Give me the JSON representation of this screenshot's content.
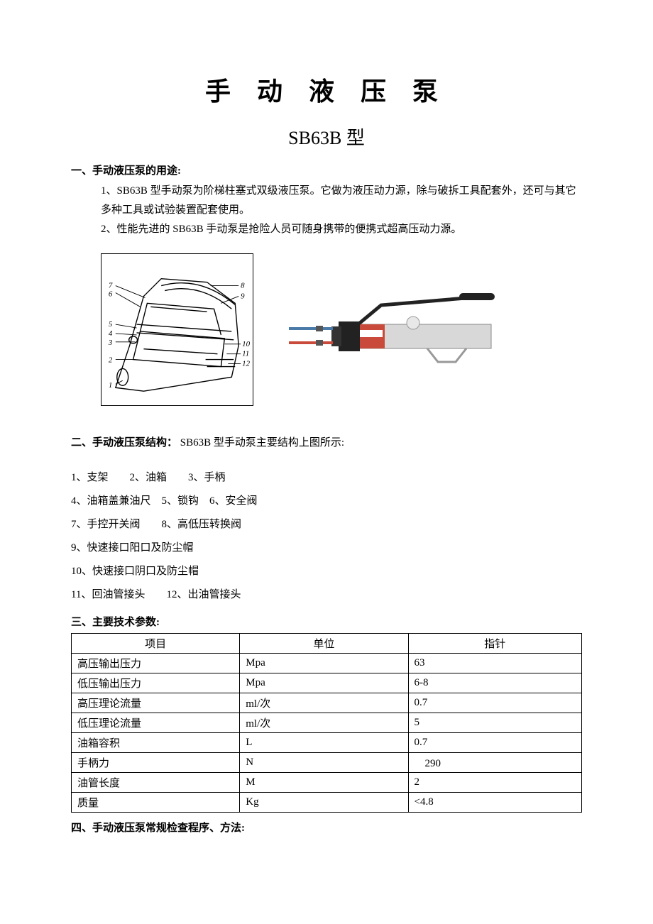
{
  "title": "手 动 液 压 泵",
  "subtitle": "SB63B 型",
  "section1": {
    "heading": "一、手动液压泵的用途:",
    "p1": "1、SB63B 型手动泵为阶梯柱塞式双级液压泵。它做为液压动力源，除与破拆工具配套外，还可与其它多种工具或试验装置配套使用。",
    "p2": "2、性能先进的 SB63B 手动泵是抢险人员可随身携带的便携式超高压动力源。"
  },
  "section2": {
    "heading_inline": "二、手动液压泵结构：",
    "heading_rest": "SB63B 型手动泵主要结构上图所示:",
    "parts": [
      "1、支架　　2、油箱　　3、手柄",
      "4、油箱盖兼油尺　5、锁钩　6、安全阀",
      "7、手控开关阀　　8、高低压转换阀",
      "9、快速接口阳口及防尘帽",
      "10、快速接口阴口及防尘帽",
      "11、回油管接头　　12、出油管接头"
    ]
  },
  "section3": {
    "heading": "三、主要技术参数:",
    "table": {
      "columns": [
        "项目",
        "单位",
        "指针"
      ],
      "rows": [
        [
          "高压输出压力",
          "Mpa",
          "63"
        ],
        [
          "低压输出压力",
          "Mpa",
          "6-8"
        ],
        [
          "高压理论流量",
          "ml/次",
          "0.7"
        ],
        [
          "低压理论流量",
          "ml/次",
          "5"
        ],
        [
          "油箱容积",
          "L",
          "0.7"
        ],
        [
          "手柄力",
          "N",
          "　290"
        ],
        [
          "油管长度",
          "M",
          "2"
        ],
        [
          "质量",
          "Kg",
          "<4.8"
        ]
      ]
    }
  },
  "section4": {
    "heading": "四、手动液压泵常规检查程序、方法:"
  },
  "diagram_labels": [
    "1",
    "2",
    "3",
    "4",
    "5",
    "6",
    "7",
    "8",
    "9",
    "10",
    "11",
    "12"
  ],
  "colors": {
    "text": "#000000",
    "bg": "#ffffff",
    "border": "#000000",
    "photo_body": "#d8d8d8",
    "photo_red": "#c94a3a",
    "photo_black": "#222222",
    "photo_blue": "#4a7aa8"
  }
}
